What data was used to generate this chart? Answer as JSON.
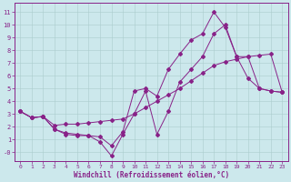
{
  "xlabel": "Windchill (Refroidissement éolien,°C)",
  "bg_color": "#cce8ec",
  "grid_color": "#aacccc",
  "line_color": "#882288",
  "xticks": [
    0,
    1,
    2,
    3,
    4,
    5,
    6,
    7,
    8,
    9,
    10,
    11,
    12,
    13,
    14,
    15,
    16,
    17,
    18,
    19,
    20,
    21,
    22,
    23
  ],
  "yticks": [
    0,
    1,
    2,
    3,
    4,
    5,
    6,
    7,
    8,
    9,
    10,
    11
  ],
  "ylabels": [
    "-0",
    "1",
    "2",
    "3",
    "4",
    "5",
    "6",
    "7",
    "8",
    "9",
    "10",
    "11"
  ],
  "line1_x": [
    0,
    1,
    2,
    3,
    4,
    5,
    6,
    7,
    8,
    9,
    10,
    11,
    12,
    13,
    14,
    15,
    16,
    17,
    18,
    19,
    20,
    21,
    22,
    23
  ],
  "line1_y": [
    3.2,
    2.7,
    2.8,
    2.1,
    2.2,
    2.2,
    2.3,
    2.4,
    2.5,
    2.6,
    3.0,
    3.5,
    4.0,
    4.5,
    5.0,
    5.6,
    6.2,
    6.8,
    7.1,
    7.3,
    7.5,
    7.6,
    7.7,
    4.7
  ],
  "line2_x": [
    0,
    1,
    2,
    3,
    4,
    5,
    6,
    7,
    8,
    9,
    10,
    11,
    12,
    13,
    14,
    15,
    16,
    17,
    18,
    19,
    20,
    21,
    22,
    23
  ],
  "line2_y": [
    3.2,
    2.7,
    2.8,
    1.8,
    1.5,
    1.4,
    1.3,
    1.2,
    0.5,
    1.6,
    4.8,
    5.0,
    4.4,
    6.5,
    7.7,
    8.8,
    9.3,
    11.0,
    9.8,
    7.5,
    7.5,
    5.0,
    4.8,
    4.7
  ],
  "line3_x": [
    0,
    1,
    2,
    3,
    4,
    5,
    6,
    7,
    8,
    9,
    10,
    11,
    12,
    13,
    14,
    15,
    16,
    17,
    18,
    19,
    20,
    21,
    22,
    23
  ],
  "line3_y": [
    3.2,
    2.7,
    2.8,
    1.8,
    1.4,
    1.3,
    1.3,
    0.8,
    -0.3,
    1.4,
    3.0,
    4.8,
    1.4,
    3.2,
    5.5,
    6.5,
    7.5,
    9.3,
    10.0,
    7.5,
    5.8,
    5.0,
    4.8,
    4.7
  ]
}
